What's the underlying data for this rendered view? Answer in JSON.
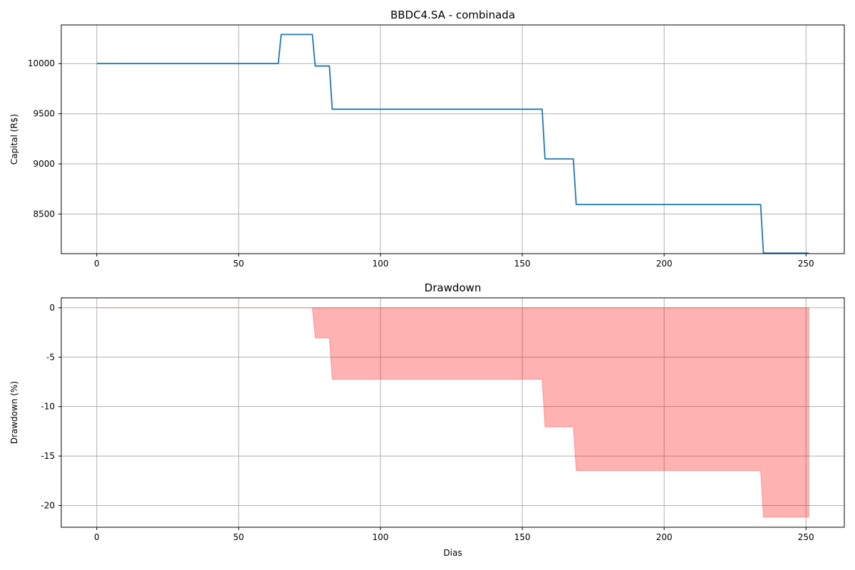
{
  "chart_data": [
    {
      "type": "line",
      "title": "BBDC4.SA - combinada",
      "xlabel": "",
      "ylabel": "Capital (R$)",
      "xlim": [
        -12.5,
        263.5
      ],
      "ylim": [
        8105,
        10385
      ],
      "xticks": [
        0,
        50,
        100,
        150,
        200,
        250
      ],
      "xtick_labels": [
        "0",
        "50",
        "100",
        "150",
        "200",
        "250"
      ],
      "yticks": [
        8500,
        9000,
        9500,
        10000
      ],
      "ytick_labels": [
        "8500",
        "9000",
        "9500",
        "10000"
      ],
      "grid": true,
      "series": [
        {
          "color": "#1f77b4",
          "x": [
            0,
            64,
            65,
            76,
            77,
            82,
            83,
            157,
            158,
            168,
            169,
            234,
            235,
            251
          ],
          "y": [
            10000,
            10000,
            10290,
            10290,
            9975,
            9975,
            9545,
            9545,
            9050,
            9050,
            8595,
            8595,
            8110,
            8110
          ]
        }
      ]
    },
    {
      "type": "area",
      "title": "Drawdown",
      "xlabel": "Dias",
      "ylabel": "Drawdown (%)",
      "xlim": [
        -12.5,
        263.5
      ],
      "ylim": [
        -22.2,
        1.0
      ],
      "xticks": [
        0,
        50,
        100,
        150,
        200,
        250
      ],
      "xtick_labels": [
        "0",
        "50",
        "100",
        "150",
        "200",
        "250"
      ],
      "yticks": [
        0,
        -5,
        -10,
        -15,
        -20
      ],
      "ytick_labels": [
        "0",
        "-5",
        "-10",
        "-15",
        "-20"
      ],
      "grid": true,
      "series": [
        {
          "color": "#ff0000",
          "fill_alpha": 0.3,
          "x": [
            0,
            76,
            77,
            82,
            83,
            157,
            158,
            168,
            169,
            234,
            235,
            251
          ],
          "y": [
            0,
            0,
            -3.06,
            -3.06,
            -7.24,
            -7.24,
            -12.05,
            -12.05,
            -16.47,
            -16.47,
            -21.18,
            -21.18
          ]
        }
      ]
    }
  ]
}
